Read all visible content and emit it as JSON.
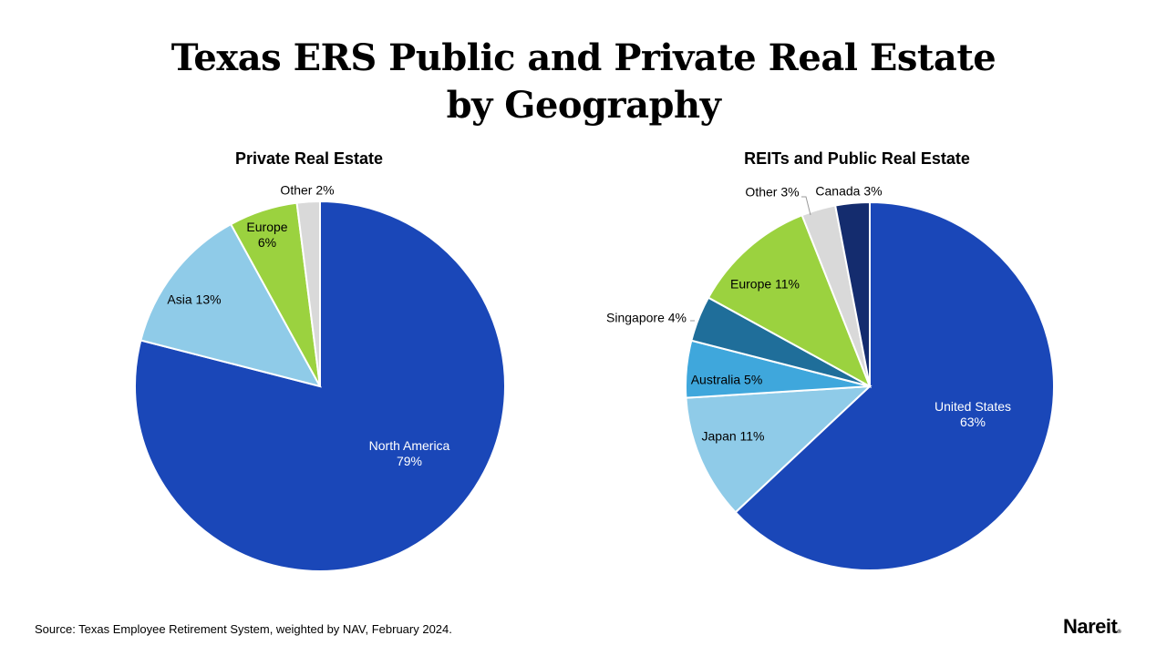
{
  "title_line1": "Texas ERS Public and Private Real Estate",
  "title_line2": "by Geography",
  "source": "Source: Texas Employee Retirement System, weighted by NAV, February 2024.",
  "logo": "Nareit",
  "chart_data": [
    {
      "type": "pie",
      "title": "Private Real Estate",
      "categories": [
        "North America",
        "Asia",
        "Europe",
        "Other"
      ],
      "values": [
        79,
        13,
        6,
        2
      ],
      "labels": [
        "North America 79%",
        "Asia 13%",
        "Europe 6%",
        "Other 2%"
      ],
      "colors": [
        "#1a47b8",
        "#8fcbe8",
        "#9bd23f",
        "#d9d9d9"
      ]
    },
    {
      "type": "pie",
      "title": "REITs and Public Real Estate",
      "categories": [
        "United States",
        "Japan",
        "Australia",
        "Singapore",
        "Europe",
        "Other",
        "Canada"
      ],
      "values": [
        63,
        11,
        5,
        4,
        11,
        3,
        3
      ],
      "labels": [
        "United States 63%",
        "Japan 11%",
        "Australia 5%",
        "Singapore 4%",
        "Europe 11%",
        "Other 3%",
        "Canada 3%"
      ],
      "colors": [
        "#1a47b8",
        "#8fcbe8",
        "#3fa7dc",
        "#1f6e9a",
        "#9bd23f",
        "#d9d9d9",
        "#142c6e"
      ]
    }
  ]
}
